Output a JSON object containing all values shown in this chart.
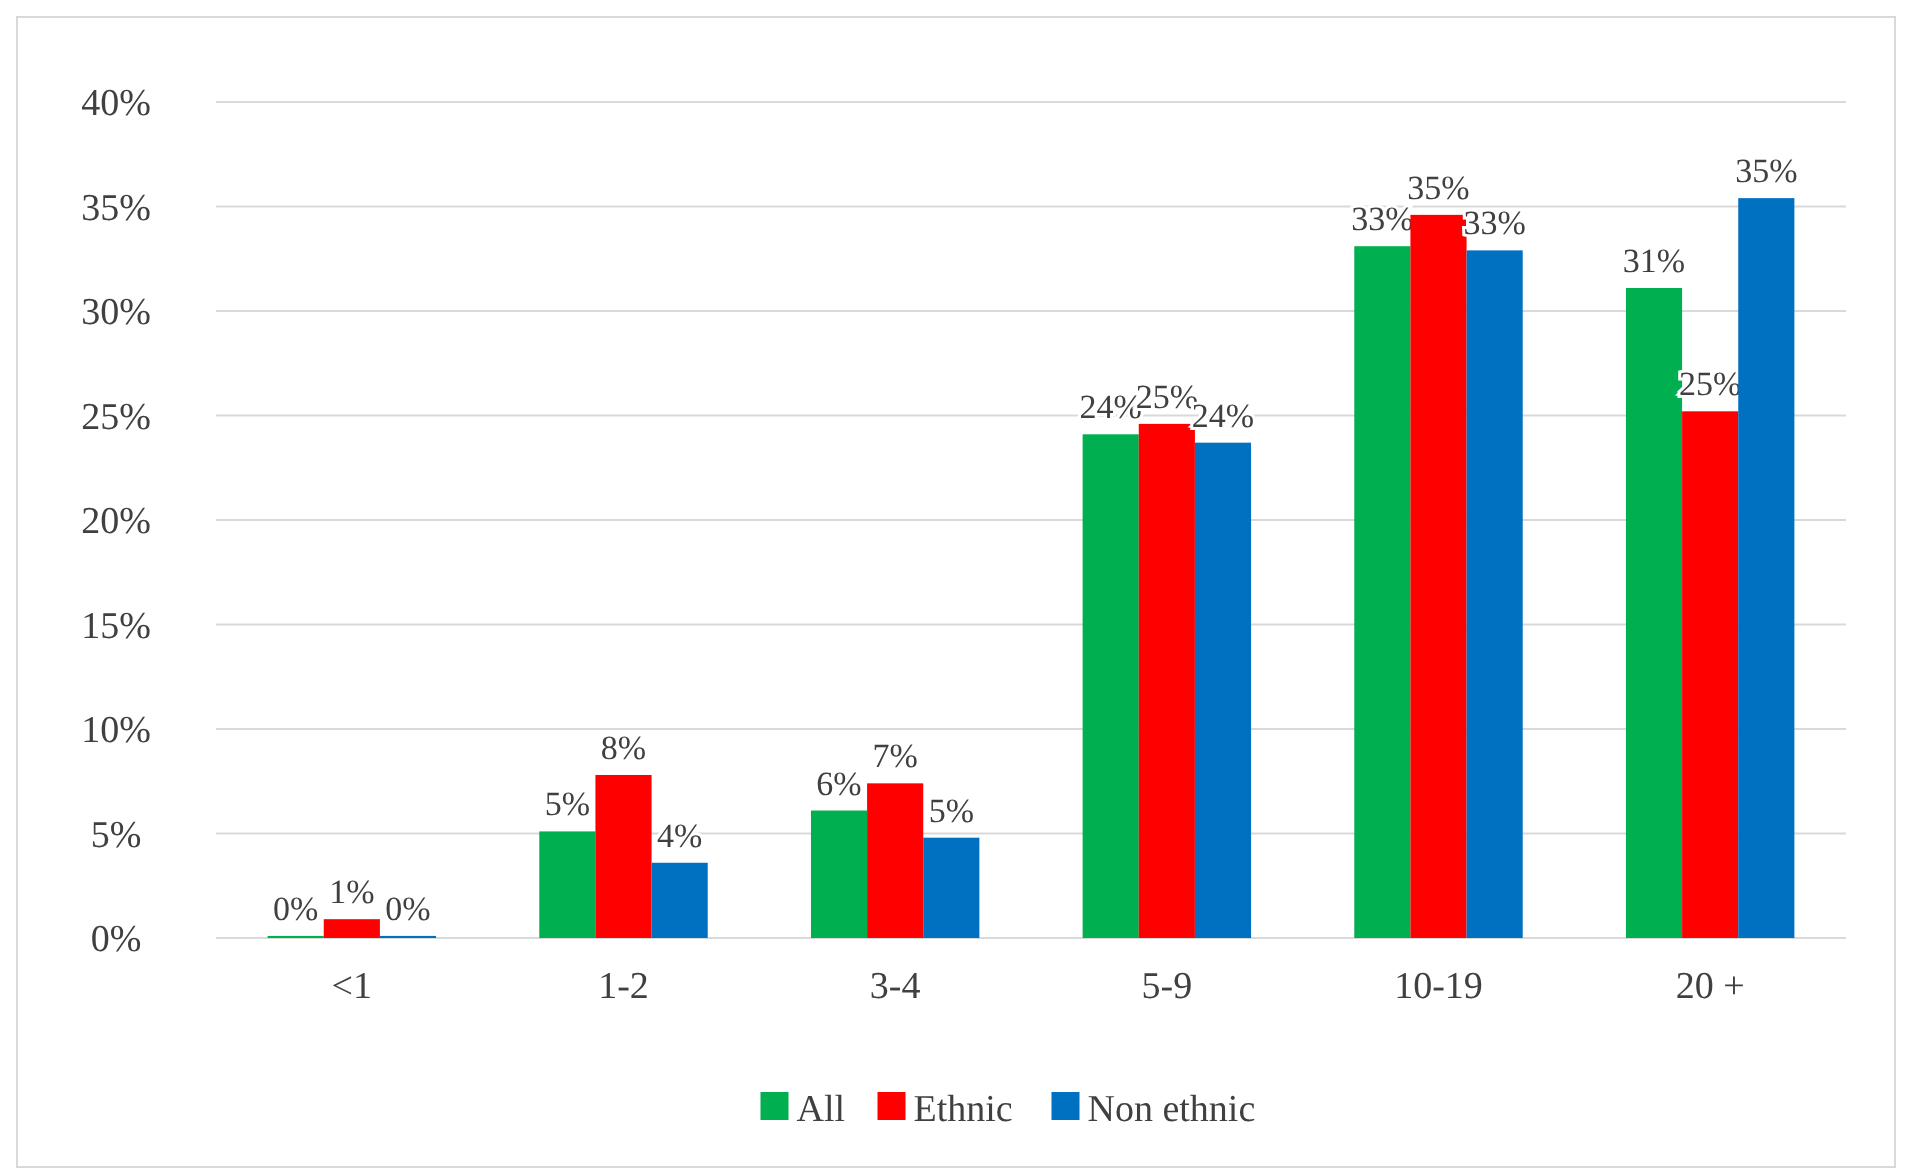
{
  "chart_data": {
    "type": "bar",
    "categories": [
      "<1",
      "1-2",
      "3-4",
      "5-9",
      "10-19",
      "20 +"
    ],
    "series": [
      {
        "name": "All",
        "color": "#00b050",
        "values": [
          0.1,
          5.1,
          6.1,
          24.1,
          33.1,
          31.1
        ],
        "value_labels": [
          "0%",
          "5%",
          "6%",
          "24%",
          "33%",
          "31%"
        ]
      },
      {
        "name": "Ethnic",
        "color": "#ff0000",
        "values": [
          0.9,
          7.8,
          7.4,
          24.6,
          34.6,
          25.2
        ],
        "value_labels": [
          "1%",
          "8%",
          "7%",
          "25%",
          "35%",
          "25%"
        ]
      },
      {
        "name": "Non ethnic",
        "color": "#0070c0",
        "values": [
          0.1,
          3.6,
          4.8,
          23.7,
          32.9,
          35.4
        ],
        "value_labels": [
          "0%",
          "4%",
          "5%",
          "24%",
          "33%",
          "35%"
        ]
      }
    ],
    "ylim": [
      0,
      40
    ],
    "yticks": [
      {
        "value": 0,
        "label": "0%"
      },
      {
        "value": 5,
        "label": "5%"
      },
      {
        "value": 10,
        "label": "10%"
      },
      {
        "value": 15,
        "label": "15%"
      },
      {
        "value": 20,
        "label": "20%"
      },
      {
        "value": 25,
        "label": "25%"
      },
      {
        "value": 30,
        "label": "30%"
      },
      {
        "value": 35,
        "label": "35%"
      },
      {
        "value": 40,
        "label": "40%"
      }
    ],
    "grid": "y",
    "legend": "bottom"
  }
}
